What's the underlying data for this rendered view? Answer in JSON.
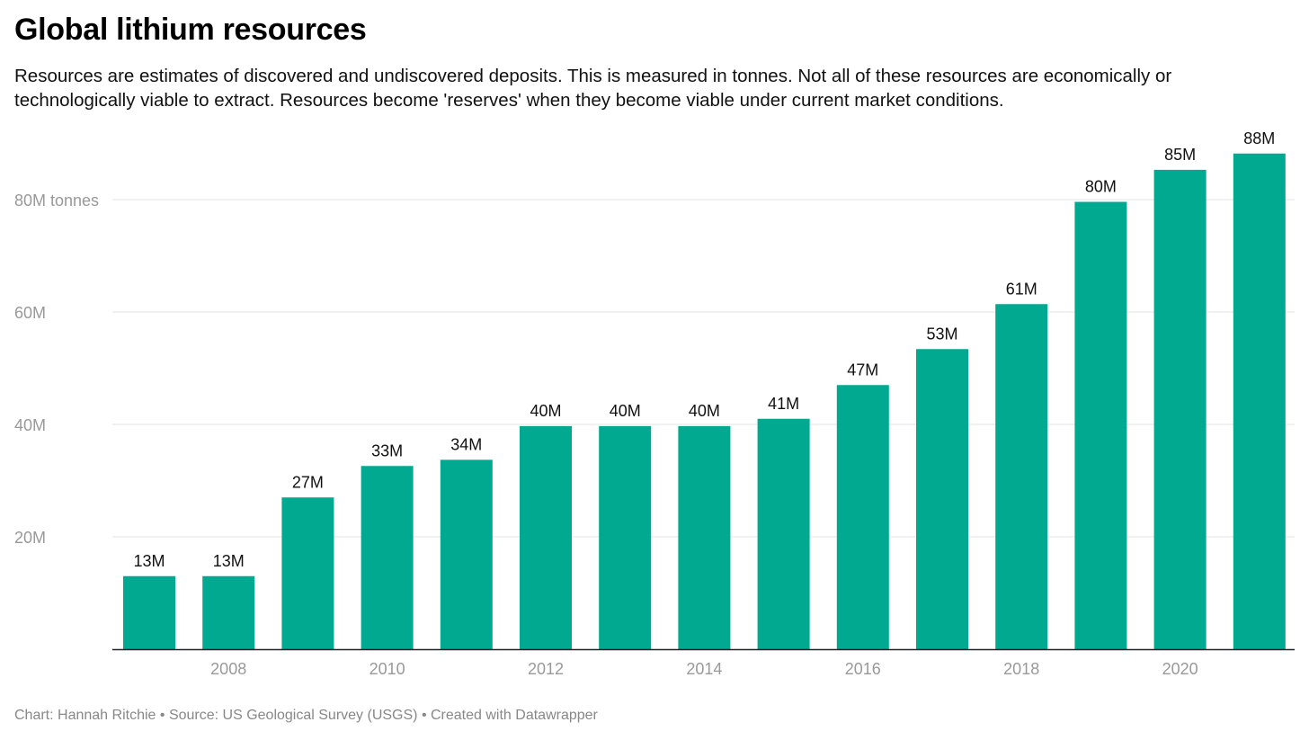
{
  "title": "Global lithium resources",
  "subtitle": "Resources are estimates of discovered and undiscovered deposits. This is measured in tonnes. Not all of these resources are economically or technologically viable to extract. Resources become 'reserves' when they become viable under current market conditions.",
  "footer": {
    "chart_credit": "Chart: Hannah Ritchie",
    "source": "Source: US Geological Survey (USGS)",
    "tool": "Created with Datawrapper",
    "separator": "•"
  },
  "colors": {
    "bar": "#00a98f",
    "grid": "#e3e3e3",
    "axis": "#222222",
    "tick_label": "#999999",
    "data_label": "#111111"
  },
  "chart_data": {
    "type": "bar",
    "categories": [
      "2007",
      "2008",
      "2009",
      "2010",
      "2011",
      "2012",
      "2013",
      "2014",
      "2015",
      "2016",
      "2017",
      "2018",
      "2019",
      "2020",
      "2021"
    ],
    "values": [
      13,
      13,
      27,
      32.6,
      33.7,
      39.7,
      39.7,
      39.7,
      41,
      47,
      53.4,
      61.4,
      79.6,
      85.3,
      88.2
    ],
    "value_labels": [
      "13M",
      "13M",
      "27M",
      "33M",
      "34M",
      "40M",
      "40M",
      "40M",
      "41M",
      "47M",
      "53M",
      "61M",
      "80M",
      "85M",
      "88M"
    ],
    "x_ticks": [
      "2008",
      "2010",
      "2012",
      "2014",
      "2016",
      "2018",
      "2020"
    ],
    "y_ticks": [
      {
        "value": 20,
        "label": "20M"
      },
      {
        "value": 40,
        "label": "40M"
      },
      {
        "value": 60,
        "label": "60M"
      },
      {
        "value": 80,
        "label": "80M tonnes"
      }
    ],
    "ylim": [
      0,
      90
    ],
    "grid": true,
    "xlabel": "",
    "ylabel": ""
  }
}
